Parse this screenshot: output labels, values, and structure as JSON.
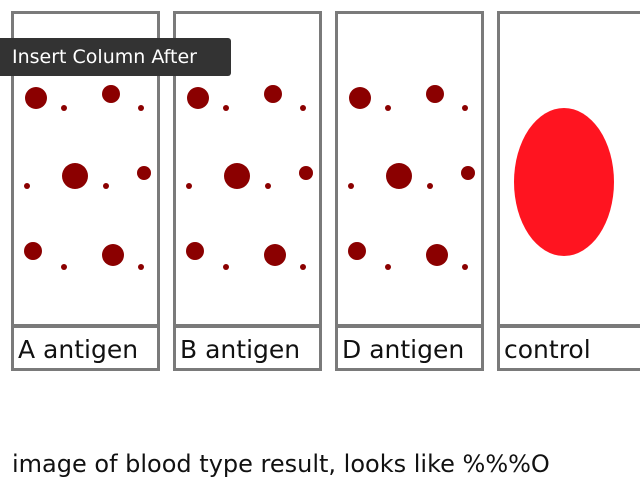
{
  "tooltip": {
    "label": "Insert Column After"
  },
  "columns": [
    {
      "label": "A antigen",
      "result": "agglutinated"
    },
    {
      "label": "B antigen",
      "result": "agglutinated"
    },
    {
      "label": "D antigen",
      "result": "agglutinated"
    },
    {
      "label": "control",
      "result": "uniform"
    }
  ],
  "caption": "image of blood type result, looks like %%%O",
  "colors": {
    "clump": "#8b0000",
    "control_drop": "#ff1420",
    "cell_border": "#7a7a7a",
    "tooltip_bg": "#333333"
  }
}
